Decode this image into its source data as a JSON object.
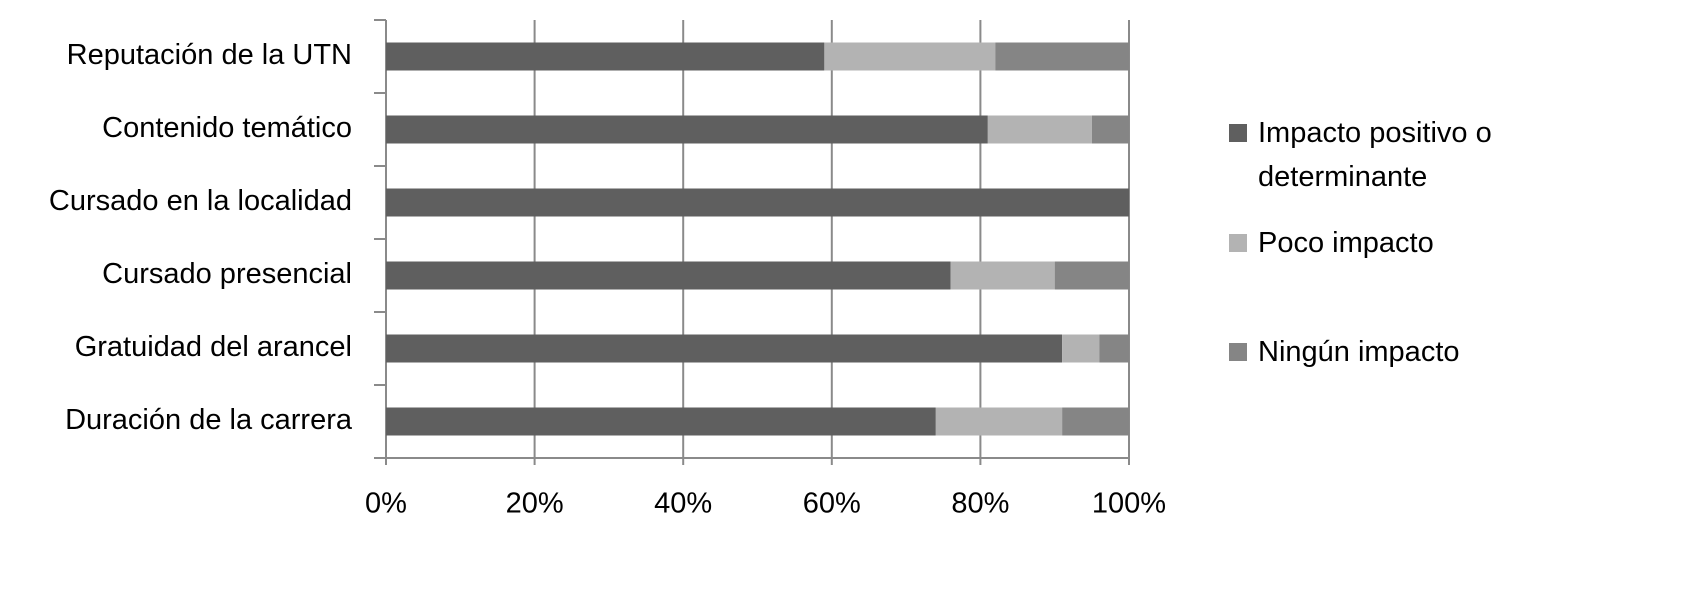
{
  "chart_data": {
    "type": "stacked-bar-horizontal",
    "categories": [
      "Reputación de la UTN",
      "Contenido temático",
      "Cursado en la localidad",
      "Cursado presencial",
      "Gratuidad del arancel",
      "Duración de la carrera"
    ],
    "series": [
      {
        "name": "Impacto positivo o determinante",
        "color": "#5f5f5f",
        "values": [
          59,
          81,
          100,
          76,
          91,
          74
        ]
      },
      {
        "name": "Poco impacto",
        "color": "#b3b3b3",
        "values": [
          23,
          14,
          0,
          14,
          5,
          17
        ]
      },
      {
        "name": "Ningún impacto",
        "color": "#858585",
        "values": [
          18,
          5,
          0,
          10,
          4,
          9
        ]
      }
    ],
    "xlim": [
      0,
      100
    ],
    "xticks": [
      {
        "value": 0,
        "label": "0%"
      },
      {
        "value": 20,
        "label": "20%"
      },
      {
        "value": 40,
        "label": "40%"
      },
      {
        "value": 60,
        "label": "60%"
      },
      {
        "value": 80,
        "label": "80%"
      },
      {
        "value": 100,
        "label": "100%"
      }
    ],
    "grid": true,
    "legend": "right"
  }
}
